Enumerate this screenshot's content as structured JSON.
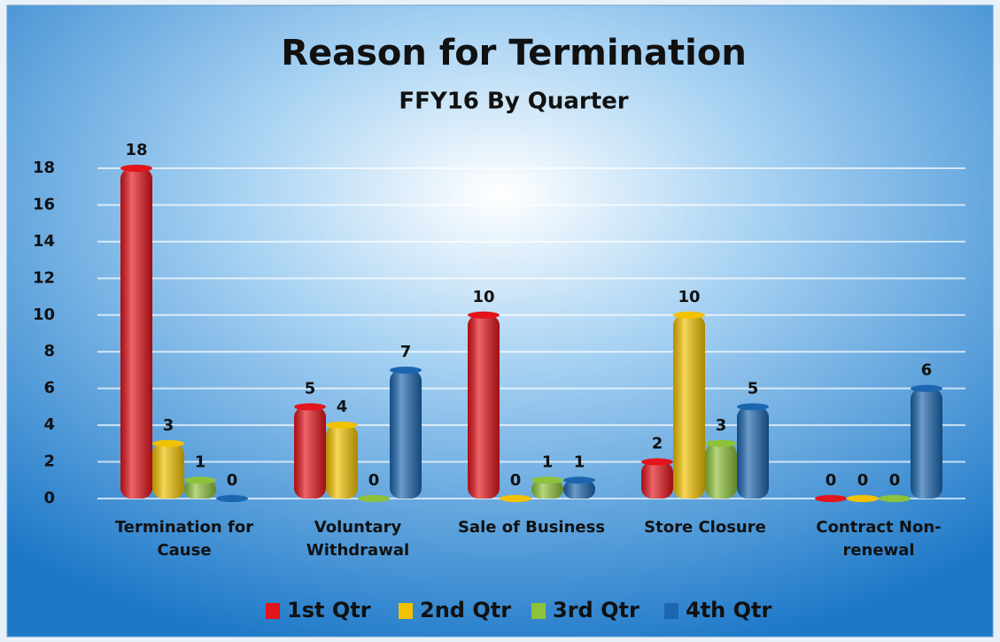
{
  "chart_data": {
    "type": "bar",
    "title": "Reason for Termination",
    "subtitle": "FFY16 By Quarter",
    "categories": [
      "Termination for Cause",
      "Voluntary Withdrawal",
      "Sale of Business",
      "Store Closure",
      "Contract Non-renewal"
    ],
    "series": [
      {
        "name": "1st Qtr",
        "color": "#e3141b",
        "values": [
          18,
          5,
          10,
          2,
          0
        ]
      },
      {
        "name": "2nd Qtr",
        "color": "#f2c200",
        "values": [
          3,
          4,
          0,
          10,
          0
        ]
      },
      {
        "name": "3rd Qtr",
        "color": "#8dc23b",
        "values": [
          1,
          0,
          1,
          3,
          0
        ]
      },
      {
        "name": "4th Qtr",
        "color": "#1c66b0",
        "values": [
          0,
          7,
          1,
          5,
          6
        ]
      }
    ],
    "ylim": [
      0,
      18
    ],
    "yticks": [
      0,
      2,
      4,
      6,
      8,
      10,
      12,
      14,
      16,
      18
    ],
    "grid": true,
    "legend": "bottom"
  }
}
